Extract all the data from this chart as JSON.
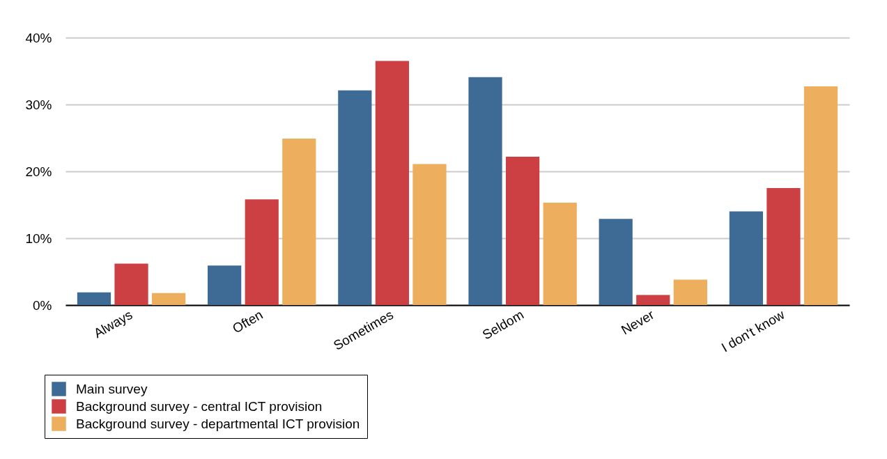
{
  "chart_data": {
    "type": "bar",
    "categories": [
      "Always",
      "Often",
      "Sometimes",
      "Seldom",
      "Never",
      "I don't know"
    ],
    "series": [
      {
        "name": "Main survey",
        "color": "#3d6b96",
        "values": [
          1.9,
          5.9,
          32.1,
          34.1,
          12.9,
          14.0
        ]
      },
      {
        "name": "Background survey - central ICT provision",
        "color": "#cc4044",
        "values": [
          6.2,
          15.8,
          36.5,
          22.2,
          1.5,
          17.5
        ]
      },
      {
        "name": "Background survey - departmental ICT provision",
        "color": "#edae5d",
        "values": [
          1.8,
          24.9,
          21.1,
          15.3,
          3.8,
          32.7
        ]
      }
    ],
    "ylim": [
      0,
      40
    ],
    "yticks": [
      {
        "value": 0,
        "label": "0%"
      },
      {
        "value": 10,
        "label": "10%"
      },
      {
        "value": 20,
        "label": "20%"
      },
      {
        "value": 30,
        "label": "30%"
      },
      {
        "value": 40,
        "label": "40%"
      }
    ],
    "grid": "y",
    "legend": "bottom left"
  }
}
